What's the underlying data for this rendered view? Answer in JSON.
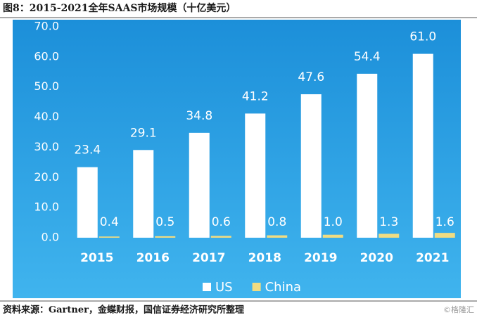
{
  "chart_data": {
    "type": "bar",
    "title": "图8：2015-2021全年SAAS市场规模（十亿美元）",
    "source": "资料来源：Gartner，金蝶财报，国信证券经济研究所整理",
    "watermark": "©格隆汇",
    "categories": [
      "2015",
      "2016",
      "2017",
      "2018",
      "2019",
      "2020",
      "2021"
    ],
    "series": [
      {
        "name": "US",
        "color": "#ffffff",
        "values": [
          23.4,
          29.1,
          34.8,
          41.2,
          47.6,
          54.4,
          61
        ],
        "value_labels": [
          "23.4",
          "29.1",
          "34.8",
          "41.2",
          "47.6",
          "54.4",
          "61.0"
        ]
      },
      {
        "name": "China",
        "color": "#f0dc82",
        "values": [
          0.4,
          0.5,
          0.6,
          0.8,
          1,
          1.3,
          1.6
        ],
        "value_labels": [
          "0.4",
          "0.5",
          "0.6",
          "0.8",
          "1.0",
          "1.3",
          "1.6"
        ]
      }
    ],
    "ylim": [
      0,
      70
    ],
    "yticks": [
      {
        "value": 0,
        "label": "0.0"
      },
      {
        "value": 10,
        "label": "10.0"
      },
      {
        "value": 20,
        "label": "20.0"
      },
      {
        "value": 30,
        "label": "30.0"
      },
      {
        "value": 40,
        "label": "40.0"
      },
      {
        "value": 50,
        "label": "50.0"
      },
      {
        "value": 60,
        "label": "60.0"
      },
      {
        "value": 70,
        "label": "70.0"
      }
    ],
    "legend": "bottom",
    "grid": false
  }
}
